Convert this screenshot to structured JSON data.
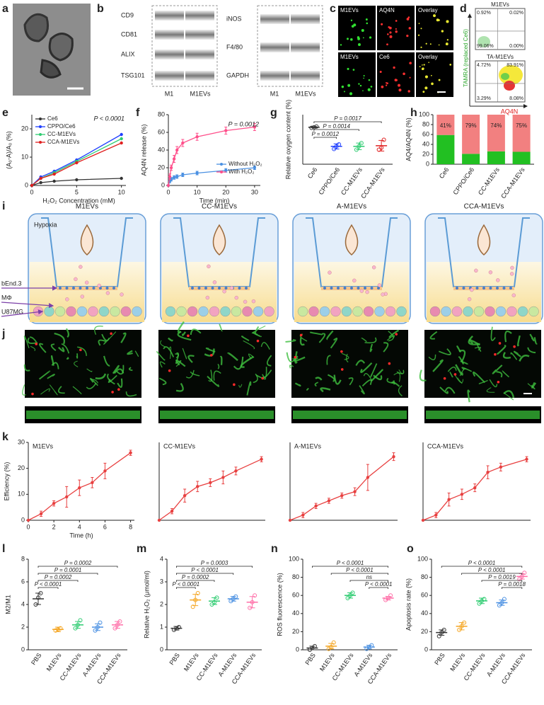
{
  "panel_letters": [
    "a",
    "b",
    "c",
    "d",
    "e",
    "f",
    "g",
    "h",
    "i",
    "j",
    "k",
    "l",
    "m",
    "n",
    "o"
  ],
  "blots": {
    "left_rows": [
      "CD9",
      "CD81",
      "ALIX",
      "TSG101"
    ],
    "right_rows": [
      "iNOS",
      "F4/80",
      "GAPDH"
    ],
    "lanes": [
      "M1",
      "M1EVs"
    ]
  },
  "fluorescence": {
    "rows": [
      [
        "M1EVs",
        "AQ4N",
        "Overlay"
      ],
      [
        "M1EVs",
        "Ce6",
        "Overlay"
      ]
    ]
  },
  "flow": {
    "plots": [
      {
        "title": "M1EVs",
        "quadrants": [
          "0.92%",
          "0.02%",
          "99.06%",
          "0.00%"
        ]
      },
      {
        "title": "TA-M1EVs",
        "quadrants": [
          "4.72%",
          "83.91%",
          "3.29%",
          "8.08%"
        ]
      }
    ],
    "y_label": "TAMRA (replaced Ce6)",
    "x_label": "AQ4N"
  },
  "transwell": {
    "titles": [
      "M1EVs",
      "CC-M1EVs",
      "A-M1EVs",
      "CCA-M1EVs"
    ],
    "condition": "Hypoxia",
    "layers": [
      "bEnd.3",
      "MΦ",
      "U87MG"
    ]
  },
  "chart_data": [
    {
      "type": "line",
      "x_label": "H₂O₂ Concentration (mM)",
      "y_label": "(A₀-A)/A₀ (%)",
      "annotation": "P < 0.0001",
      "x": [
        0,
        1,
        2.5,
        5,
        10
      ],
      "series": [
        {
          "name": "Ce6",
          "color": "#333333",
          "values": [
            0,
            1,
            1.5,
            2,
            2.5
          ]
        },
        {
          "name": "CPPO/Ce6",
          "color": "#1f3fff",
          "values": [
            0,
            3,
            5,
            9,
            18
          ]
        },
        {
          "name": "CC-M1EVs",
          "color": "#2ecc71",
          "values": [
            0,
            2.5,
            4.5,
            8.5,
            16.5
          ]
        },
        {
          "name": "CCA-M1EVs",
          "color": "#e02020",
          "values": [
            0,
            2.5,
            4,
            8,
            15
          ]
        }
      ],
      "xlim": [
        0,
        10.5
      ],
      "xticks": [
        0,
        5,
        10
      ],
      "ylim": [
        0,
        25
      ],
      "yticks": [
        0,
        10,
        20
      ],
      "legend": "upper left"
    },
    {
      "type": "line",
      "x_label": "Time (min)",
      "y_label": "AQ4N release (%)",
      "annotation": "P = 0.0012",
      "x": [
        0,
        0.5,
        1,
        2,
        3,
        5,
        10,
        20,
        30
      ],
      "series": [
        {
          "name": "Without H₂O₂",
          "color": "#4a90e2",
          "values": [
            0,
            5,
            7,
            9,
            10,
            12,
            14,
            17,
            20
          ],
          "errors": [
            0,
            2,
            2,
            2,
            2,
            2,
            2,
            2,
            2
          ]
        },
        {
          "name": "With H₂O₂",
          "color": "#ff4f8b",
          "values": [
            0,
            10,
            20,
            30,
            40,
            48,
            55,
            62,
            66
          ],
          "errors": [
            0,
            3,
            3,
            4,
            4,
            4,
            4,
            4,
            4
          ]
        }
      ],
      "xlim": [
        0,
        32
      ],
      "xticks": [
        0,
        10,
        20,
        30
      ],
      "ylim": [
        0,
        80
      ],
      "yticks": [
        0,
        20,
        40,
        60,
        80
      ],
      "legend": "lower right"
    },
    {
      "type": "dot_plot",
      "y_label": "Relative oxygen content (%)",
      "categories": [
        "Ce6",
        "CPPO/Ce6",
        "CC-M1EVs",
        "CCA-M1EVs"
      ],
      "colors": [
        "#333333",
        "#1f3fff",
        "#2ecc71",
        "#e02020"
      ],
      "values": [
        96,
        67,
        67,
        68
      ],
      "errors": [
        1,
        4,
        5,
        8
      ],
      "points": [
        [
          95,
          96,
          97
        ],
        [
          63,
          67,
          70
        ],
        [
          62,
          67,
          72
        ],
        [
          62,
          65,
          77
        ]
      ],
      "ylim": [
        40,
        115
      ],
      "colored_labels": false,
      "brackets": [
        {
          "text": "P = 0.0017",
          "between": [
            "Ce6",
            "CCA-M1EVs"
          ]
        },
        {
          "text": "P = 0.0014",
          "between": [
            "Ce6",
            "CC-M1EVs"
          ]
        },
        {
          "text": "P = 0.0012",
          "between": [
            "Ce6",
            "CPPO/Ce6"
          ]
        }
      ]
    },
    {
      "type": "stacked_bar",
      "y_label": "AQ4/AQ4N (%)",
      "categories": [
        "Ce6",
        "CPPO/Ce6",
        "CC-M1EVs",
        "CCA-M1EVs"
      ],
      "series": [
        {
          "color": "#22c022",
          "values": [
            59,
            21,
            26,
            25
          ]
        },
        {
          "color": "#f28080",
          "values": [
            41,
            79,
            74,
            75
          ],
          "value_labels": [
            "41%",
            "79%",
            "74%",
            "75%"
          ]
        }
      ],
      "ylim": [
        0,
        100
      ],
      "yticks": [
        0,
        20,
        40,
        60,
        80,
        100
      ]
    },
    {
      "type": "line",
      "title": "M1EVs",
      "x_label": "Time (h)",
      "y_label": "Efficiency (%)",
      "x": [
        0,
        1,
        2,
        3,
        4,
        5,
        6,
        8
      ],
      "series": [
        {
          "color": "#e84040",
          "values": [
            0,
            2.5,
            6.5,
            9,
            12.5,
            14.5,
            19,
            26
          ],
          "errors": [
            0,
            1,
            1,
            4,
            3,
            2,
            3,
            1
          ]
        }
      ],
      "xlim": [
        0,
        8.3
      ],
      "xticks": [
        0,
        2,
        4,
        6,
        8
      ],
      "ylim": [
        0,
        30
      ],
      "yticks": [
        0,
        10,
        20,
        30
      ]
    },
    {
      "type": "line",
      "title": "CC-M1EVs",
      "x": [
        0,
        1,
        2,
        3,
        4,
        5,
        6,
        8
      ],
      "series": [
        {
          "color": "#e84040",
          "values": [
            0,
            3.5,
            9.5,
            13,
            14.5,
            16.5,
            19,
            23.5
          ],
          "errors": [
            0,
            1,
            2.5,
            2,
            1.5,
            2.5,
            1.5,
            1
          ]
        }
      ],
      "xlim": [
        0,
        8.3
      ],
      "ylim": [
        0,
        30
      ]
    },
    {
      "type": "line",
      "title": "A-M1EVs",
      "x": [
        0,
        1,
        2,
        3,
        4,
        5,
        6,
        8
      ],
      "series": [
        {
          "color": "#e84040",
          "values": [
            0,
            2,
            5.5,
            7.5,
            9.5,
            11,
            16.5,
            24.5
          ],
          "errors": [
            0,
            1,
            1,
            1,
            1,
            1.5,
            5,
            1.5
          ]
        }
      ],
      "xlim": [
        0,
        8.3
      ],
      "ylim": [
        0,
        30
      ]
    },
    {
      "type": "line",
      "title": "CCA-M1EVs",
      "x": [
        0,
        1,
        2,
        3,
        4,
        5,
        6,
        8
      ],
      "series": [
        {
          "color": "#e84040",
          "values": [
            0,
            2,
            8,
            10,
            12.5,
            18.5,
            20.5,
            23.5
          ],
          "errors": [
            0,
            1,
            2.5,
            2,
            1.5,
            2.5,
            1.5,
            1
          ]
        }
      ],
      "xlim": [
        0,
        8.3
      ],
      "ylim": [
        0,
        30
      ]
    },
    {
      "type": "dot_plot",
      "y_label": "M2/M1",
      "categories": [
        "PBS",
        "M1EVs",
        "CC-M1EVs",
        "A-M1EVs",
        "CCA-M1EVs"
      ],
      "colors": [
        "#333333",
        "#f5a623",
        "#2ecc71",
        "#4a90e2",
        "#ff6fa8"
      ],
      "values": [
        4.5,
        1.8,
        2.2,
        2.0,
        2.2
      ],
      "errors": [
        0.5,
        0.2,
        0.3,
        0.3,
        0.3
      ],
      "points": [
        [
          4,
          4.6,
          5
        ],
        [
          1.7,
          1.8,
          1.9
        ],
        [
          1.9,
          2.2,
          2.6
        ],
        [
          1.7,
          2.0,
          2.4
        ],
        [
          1.9,
          2.2,
          2.5
        ]
      ],
      "ylim": [
        0,
        8
      ],
      "yticks": [
        0,
        2,
        4,
        6,
        8
      ],
      "colored_labels": true,
      "brackets": [
        {
          "text": "P = 0.0002",
          "between": [
            "PBS",
            "CCA-M1EVs"
          ]
        },
        {
          "text": "P = 0.0001",
          "between": [
            "PBS",
            "A-M1EVs"
          ]
        },
        {
          "text": "P = 0.0002",
          "between": [
            "PBS",
            "CC-M1EVs"
          ]
        },
        {
          "text": "P < 0.0001",
          "between": [
            "PBS",
            "M1EVs"
          ]
        }
      ]
    },
    {
      "type": "dot_plot",
      "y_label": "Relative H₂O₂ (μmol/ml)",
      "categories": [
        "PBS",
        "M1EVs",
        "CC-M1EVs",
        "A-M1EVs",
        "CCA-M1EVs"
      ],
      "colors": [
        "#333333",
        "#f5a623",
        "#2ecc71",
        "#4a90e2",
        "#ff6fa8"
      ],
      "values": [
        0.95,
        2.2,
        2.15,
        2.25,
        2.1
      ],
      "errors": [
        0.08,
        0.25,
        0.15,
        0.1,
        0.25
      ],
      "points": [
        [
          0.88,
          0.95,
          1.0
        ],
        [
          1.9,
          2.2,
          2.5
        ],
        [
          2.0,
          2.1,
          2.3
        ],
        [
          2.15,
          2.25,
          2.35
        ],
        [
          1.85,
          2.1,
          2.4
        ]
      ],
      "ylim": [
        0,
        4
      ],
      "yticks": [
        0,
        1,
        2,
        3,
        4
      ],
      "colored_labels": true,
      "brackets": [
        {
          "text": "P = 0.0003",
          "between": [
            "PBS",
            "CCA-M1EVs"
          ]
        },
        {
          "text": "P < 0.0001",
          "between": [
            "PBS",
            "A-M1EVs"
          ]
        },
        {
          "text": "P = 0.0002",
          "between": [
            "PBS",
            "CC-M1EVs"
          ]
        },
        {
          "text": "P < 0.0001",
          "between": [
            "PBS",
            "M1EVs"
          ]
        }
      ]
    },
    {
      "type": "dot_plot",
      "y_label": "ROS fluorescence (%)",
      "categories": [
        "PBS",
        "M1EVs",
        "CC-M1EVs",
        "A-M1EVs",
        "CCA-M1EVs"
      ],
      "colors": [
        "#333333",
        "#f5a623",
        "#2ecc71",
        "#4a90e2",
        "#ff6fa8"
      ],
      "values": [
        2,
        4,
        60,
        3,
        57
      ],
      "errors": [
        2,
        3,
        3,
        2,
        2
      ],
      "points": [
        [
          0,
          2,
          4
        ],
        [
          1,
          3,
          8
        ],
        [
          57,
          60,
          63
        ],
        [
          1,
          3,
          5
        ],
        [
          55,
          57,
          60
        ]
      ],
      "ylim": [
        0,
        100
      ],
      "yticks": [
        0,
        20,
        40,
        60,
        80,
        100
      ],
      "colored_labels": true,
      "brackets": [
        {
          "text": "P < 0.0001",
          "between": [
            "PBS",
            "CCA-M1EVs"
          ]
        },
        {
          "text": "P < 0.0001",
          "between": [
            "M1EVs",
            "CCA-M1EVs"
          ]
        },
        {
          "text": "ns",
          "between": [
            "CC-M1EVs",
            "CCA-M1EVs"
          ]
        },
        {
          "text": "P < 0.0001",
          "between": [
            "A-M1EVs",
            "CCA-M1EVs"
          ]
        }
      ]
    },
    {
      "type": "dot_plot",
      "y_label": "Apoptosis rate (%)",
      "categories": [
        "PBS",
        "M1EVs",
        "CC-M1EVs",
        "A-M1EVs",
        "CCA-M1EVs"
      ],
      "colors": [
        "#333333",
        "#f5a623",
        "#2ecc71",
        "#4a90e2",
        "#ff6fa8"
      ],
      "values": [
        19,
        26,
        54,
        52,
        81
      ],
      "errors": [
        3,
        4,
        3,
        3,
        3
      ],
      "points": [
        [
          15,
          19,
          22
        ],
        [
          22,
          26,
          30
        ],
        [
          51,
          54,
          56
        ],
        [
          49,
          52,
          56
        ],
        [
          78,
          81,
          85
        ]
      ],
      "ylim": [
        0,
        100
      ],
      "yticks": [
        0,
        20,
        40,
        60,
        80,
        100
      ],
      "colored_labels": true,
      "brackets": [
        {
          "text": "P < 0.0001",
          "between": [
            "PBS",
            "CCA-M1EVs"
          ]
        },
        {
          "text": "P < 0.0001",
          "between": [
            "M1EVs",
            "CCA-M1EVs"
          ]
        },
        {
          "text": "P = 0.0019",
          "between": [
            "CC-M1EVs",
            "CCA-M1EVs"
          ]
        },
        {
          "text": "P = 0.0018",
          "between": [
            "A-M1EVs",
            "CCA-M1EVs"
          ]
        }
      ]
    }
  ]
}
